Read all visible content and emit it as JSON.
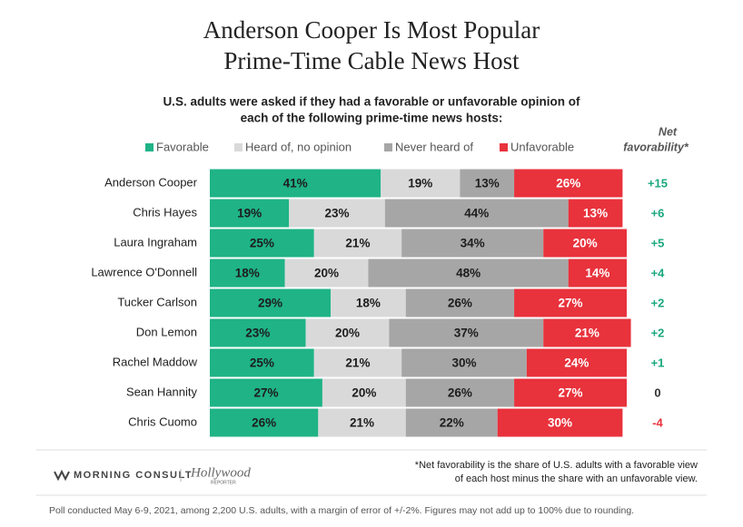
{
  "chart_data": {
    "type": "stacked-bar-horizontal",
    "title_lines": [
      "Anderson Cooper Is Most Popular",
      "Prime-Time Cable News Host"
    ],
    "subtitle_lines": [
      "U.S. adults were asked if they had a favorable or unfavorable opinion of",
      "each of the following prime-time news hosts:"
    ],
    "categories": [
      "Anderson Cooper",
      "Chris Hayes",
      "Laura Ingraham",
      "Lawrence O'Donnell",
      "Tucker Carlson",
      "Don Lemon",
      "Rachel Maddow",
      "Sean Hannity",
      "Chris Cuomo"
    ],
    "xlim": [
      0,
      100
    ],
    "series": [
      {
        "name": "Favorable",
        "color": "#1fb386",
        "label_color": "#1d1d1d",
        "values": [
          41,
          19,
          25,
          18,
          29,
          23,
          25,
          27,
          26
        ],
        "value_labels": [
          "41%",
          "19%",
          "25%",
          "18%",
          "29%",
          "23%",
          "25%",
          "27%",
          "26%"
        ]
      },
      {
        "name": "Heard of, no opinion",
        "color": "#d9d9d9",
        "label_color": "#1d1d1d",
        "values": [
          19,
          23,
          21,
          20,
          18,
          20,
          21,
          20,
          21
        ],
        "value_labels": [
          "19%",
          "23%",
          "21%",
          "20%",
          "18%",
          "20%",
          "21%",
          "20%",
          "21%"
        ]
      },
      {
        "name": "Never heard of",
        "color": "#a6a6a6",
        "label_color": "#1d1d1d",
        "values": [
          13,
          44,
          34,
          48,
          26,
          37,
          30,
          26,
          22
        ],
        "value_labels": [
          "13%",
          "44%",
          "34%",
          "48%",
          "26%",
          "37%",
          "30%",
          "26%",
          "22%"
        ]
      },
      {
        "name": "Unfavorable",
        "color": "#e8323c",
        "label_color": "#ffffff",
        "values": [
          26,
          13,
          20,
          14,
          27,
          21,
          24,
          27,
          30
        ],
        "value_labels": [
          "26%",
          "13%",
          "20%",
          "14%",
          "27%",
          "21%",
          "24%",
          "27%",
          "30%"
        ]
      }
    ],
    "net_title_lines": [
      "Net",
      "favorability*"
    ],
    "net_values": [
      15,
      6,
      5,
      4,
      2,
      2,
      1,
      0,
      -4
    ],
    "net_value_labels": [
      "+15",
      "+6",
      "+5",
      "+4",
      "+2",
      "+2",
      "+1",
      "0",
      "-4"
    ],
    "net_colors": {
      "positive": "#1aa87e",
      "zero": "#333333",
      "negative": "#e8323c"
    },
    "footnote_lines": [
      "*Net favorability is the share of U.S. adults with a favorable view",
      "of each host minus the share with an unfavorable view."
    ],
    "source": "Poll conducted May 6-9, 2021, among 2,200 U.S. adults, with a margin of error of +/-2%. Figures may not add up to 100% due to rounding.",
    "logos": [
      "MORNING CONSULT",
      "Hollywood",
      "REPORTER"
    ]
  }
}
